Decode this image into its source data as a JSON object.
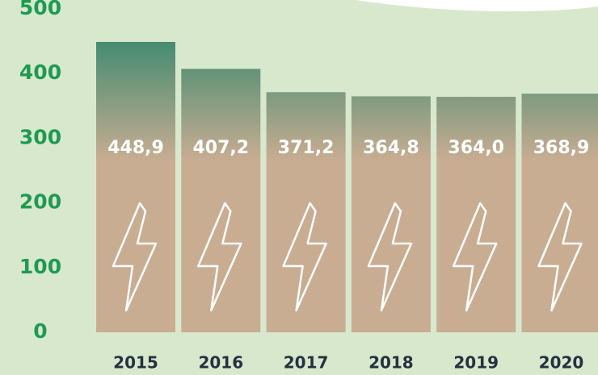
{
  "chart_data": {
    "type": "bar",
    "categories": [
      "2015",
      "2016",
      "2017",
      "2018",
      "2019",
      "2020"
    ],
    "values": [
      448.9,
      407.2,
      371.2,
      364.8,
      364.0,
      368.9
    ],
    "value_labels": [
      "448,9",
      "407,2",
      "371,2",
      "364,8",
      "364,0",
      "368,9"
    ],
    "ylim": [
      0,
      500
    ],
    "yticks": [
      0,
      100,
      200,
      300,
      400,
      500
    ],
    "color": "#c9ad92",
    "top_color": "#3f8a6f",
    "tick_color": "#1e9a52",
    "category_color": "#24323f",
    "value_label_color": "#ffffff"
  }
}
